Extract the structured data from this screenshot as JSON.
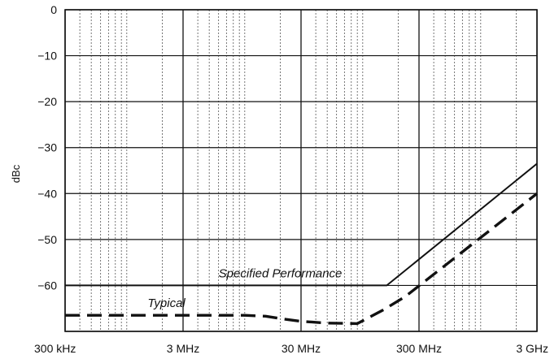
{
  "chart_data": {
    "type": "line",
    "title": "",
    "xlabel": "",
    "ylabel": "dBc",
    "x_scale": "log",
    "x_range_hz": [
      300000,
      3000000000
    ],
    "ylim": [
      -70,
      0
    ],
    "x_ticks": [
      {
        "value": 300000,
        "label": "300 kHz"
      },
      {
        "value": 3000000,
        "label": "3 MHz"
      },
      {
        "value": 30000000,
        "label": "30 MHz"
      },
      {
        "value": 300000000,
        "label": "300 MHz"
      },
      {
        "value": 3000000000,
        "label": "3 GHz"
      }
    ],
    "y_ticks": [
      0,
      -10,
      -20,
      -30,
      -40,
      -50,
      -60
    ],
    "grid": "log minor vertical, major horizontal",
    "series": [
      {
        "name": "Specified Performance",
        "style": "solid",
        "points": [
          [
            300000,
            -60
          ],
          [
            160000000,
            -60
          ],
          [
            3000000000,
            -33.5
          ]
        ]
      },
      {
        "name": "Typical",
        "style": "dashed",
        "points": [
          [
            300000,
            -66.5
          ],
          [
            10000000,
            -66.5
          ],
          [
            15000000,
            -66.7
          ],
          [
            20000000,
            -67.2
          ],
          [
            30000000,
            -67.8
          ],
          [
            50000000,
            -68.2
          ],
          [
            90000000,
            -68.3
          ],
          [
            150000000,
            -65.3
          ],
          [
            230000000,
            -62.4
          ],
          [
            3000000000,
            -40
          ]
        ]
      }
    ],
    "annotations": [
      {
        "text": "Specified Performance",
        "series": "Specified Performance"
      },
      {
        "text": "Typical",
        "series": "Typical"
      }
    ]
  }
}
